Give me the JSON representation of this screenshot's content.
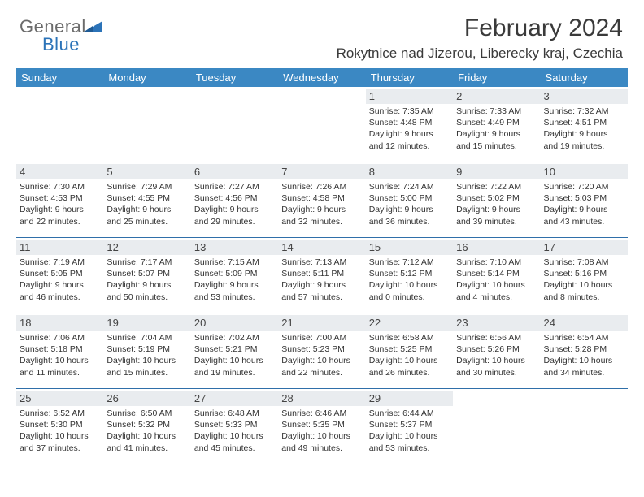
{
  "brand": {
    "part1": "General",
    "part2": "Blue",
    "logo_color": "#2b73b8",
    "text_gray": "#6b6b6b"
  },
  "title": {
    "month": "February 2024",
    "location": "Rokytnice nad Jizerou, Liberecky kraj, Czechia"
  },
  "colors": {
    "header_bg": "#3b88c3",
    "header_fg": "#ffffff",
    "row_divider": "#2f6fa9",
    "daynum_bg": "#e9ecef",
    "text": "#333333"
  },
  "daysOfWeek": [
    "Sunday",
    "Monday",
    "Tuesday",
    "Wednesday",
    "Thursday",
    "Friday",
    "Saturday"
  ],
  "weeks": [
    [
      null,
      null,
      null,
      null,
      {
        "n": "1",
        "sr": "Sunrise: 7:35 AM",
        "ss": "Sunset: 4:48 PM",
        "d1": "Daylight: 9 hours",
        "d2": "and 12 minutes."
      },
      {
        "n": "2",
        "sr": "Sunrise: 7:33 AM",
        "ss": "Sunset: 4:49 PM",
        "d1": "Daylight: 9 hours",
        "d2": "and 15 minutes."
      },
      {
        "n": "3",
        "sr": "Sunrise: 7:32 AM",
        "ss": "Sunset: 4:51 PM",
        "d1": "Daylight: 9 hours",
        "d2": "and 19 minutes."
      }
    ],
    [
      {
        "n": "4",
        "sr": "Sunrise: 7:30 AM",
        "ss": "Sunset: 4:53 PM",
        "d1": "Daylight: 9 hours",
        "d2": "and 22 minutes."
      },
      {
        "n": "5",
        "sr": "Sunrise: 7:29 AM",
        "ss": "Sunset: 4:55 PM",
        "d1": "Daylight: 9 hours",
        "d2": "and 25 minutes."
      },
      {
        "n": "6",
        "sr": "Sunrise: 7:27 AM",
        "ss": "Sunset: 4:56 PM",
        "d1": "Daylight: 9 hours",
        "d2": "and 29 minutes."
      },
      {
        "n": "7",
        "sr": "Sunrise: 7:26 AM",
        "ss": "Sunset: 4:58 PM",
        "d1": "Daylight: 9 hours",
        "d2": "and 32 minutes."
      },
      {
        "n": "8",
        "sr": "Sunrise: 7:24 AM",
        "ss": "Sunset: 5:00 PM",
        "d1": "Daylight: 9 hours",
        "d2": "and 36 minutes."
      },
      {
        "n": "9",
        "sr": "Sunrise: 7:22 AM",
        "ss": "Sunset: 5:02 PM",
        "d1": "Daylight: 9 hours",
        "d2": "and 39 minutes."
      },
      {
        "n": "10",
        "sr": "Sunrise: 7:20 AM",
        "ss": "Sunset: 5:03 PM",
        "d1": "Daylight: 9 hours",
        "d2": "and 43 minutes."
      }
    ],
    [
      {
        "n": "11",
        "sr": "Sunrise: 7:19 AM",
        "ss": "Sunset: 5:05 PM",
        "d1": "Daylight: 9 hours",
        "d2": "and 46 minutes."
      },
      {
        "n": "12",
        "sr": "Sunrise: 7:17 AM",
        "ss": "Sunset: 5:07 PM",
        "d1": "Daylight: 9 hours",
        "d2": "and 50 minutes."
      },
      {
        "n": "13",
        "sr": "Sunrise: 7:15 AM",
        "ss": "Sunset: 5:09 PM",
        "d1": "Daylight: 9 hours",
        "d2": "and 53 minutes."
      },
      {
        "n": "14",
        "sr": "Sunrise: 7:13 AM",
        "ss": "Sunset: 5:11 PM",
        "d1": "Daylight: 9 hours",
        "d2": "and 57 minutes."
      },
      {
        "n": "15",
        "sr": "Sunrise: 7:12 AM",
        "ss": "Sunset: 5:12 PM",
        "d1": "Daylight: 10 hours",
        "d2": "and 0 minutes."
      },
      {
        "n": "16",
        "sr": "Sunrise: 7:10 AM",
        "ss": "Sunset: 5:14 PM",
        "d1": "Daylight: 10 hours",
        "d2": "and 4 minutes."
      },
      {
        "n": "17",
        "sr": "Sunrise: 7:08 AM",
        "ss": "Sunset: 5:16 PM",
        "d1": "Daylight: 10 hours",
        "d2": "and 8 minutes."
      }
    ],
    [
      {
        "n": "18",
        "sr": "Sunrise: 7:06 AM",
        "ss": "Sunset: 5:18 PM",
        "d1": "Daylight: 10 hours",
        "d2": "and 11 minutes."
      },
      {
        "n": "19",
        "sr": "Sunrise: 7:04 AM",
        "ss": "Sunset: 5:19 PM",
        "d1": "Daylight: 10 hours",
        "d2": "and 15 minutes."
      },
      {
        "n": "20",
        "sr": "Sunrise: 7:02 AM",
        "ss": "Sunset: 5:21 PM",
        "d1": "Daylight: 10 hours",
        "d2": "and 19 minutes."
      },
      {
        "n": "21",
        "sr": "Sunrise: 7:00 AM",
        "ss": "Sunset: 5:23 PM",
        "d1": "Daylight: 10 hours",
        "d2": "and 22 minutes."
      },
      {
        "n": "22",
        "sr": "Sunrise: 6:58 AM",
        "ss": "Sunset: 5:25 PM",
        "d1": "Daylight: 10 hours",
        "d2": "and 26 minutes."
      },
      {
        "n": "23",
        "sr": "Sunrise: 6:56 AM",
        "ss": "Sunset: 5:26 PM",
        "d1": "Daylight: 10 hours",
        "d2": "and 30 minutes."
      },
      {
        "n": "24",
        "sr": "Sunrise: 6:54 AM",
        "ss": "Sunset: 5:28 PM",
        "d1": "Daylight: 10 hours",
        "d2": "and 34 minutes."
      }
    ],
    [
      {
        "n": "25",
        "sr": "Sunrise: 6:52 AM",
        "ss": "Sunset: 5:30 PM",
        "d1": "Daylight: 10 hours",
        "d2": "and 37 minutes."
      },
      {
        "n": "26",
        "sr": "Sunrise: 6:50 AM",
        "ss": "Sunset: 5:32 PM",
        "d1": "Daylight: 10 hours",
        "d2": "and 41 minutes."
      },
      {
        "n": "27",
        "sr": "Sunrise: 6:48 AM",
        "ss": "Sunset: 5:33 PM",
        "d1": "Daylight: 10 hours",
        "d2": "and 45 minutes."
      },
      {
        "n": "28",
        "sr": "Sunrise: 6:46 AM",
        "ss": "Sunset: 5:35 PM",
        "d1": "Daylight: 10 hours",
        "d2": "and 49 minutes."
      },
      {
        "n": "29",
        "sr": "Sunrise: 6:44 AM",
        "ss": "Sunset: 5:37 PM",
        "d1": "Daylight: 10 hours",
        "d2": "and 53 minutes."
      },
      null,
      null
    ]
  ]
}
